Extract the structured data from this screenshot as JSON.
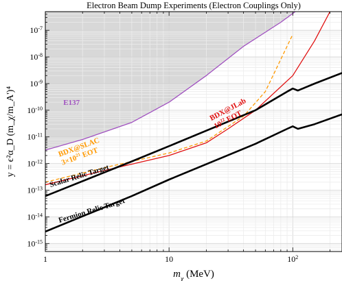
{
  "chart_data": {
    "type": "line",
    "title": "Electron Beam Dump Experiments (Electron Couplings Only)",
    "xlabel": {
      "prefix": "m",
      "sub": "χ",
      "suffix": " (MeV)"
    },
    "ylabel": "y = ϵ²α_D (m_χ/m_A')⁴",
    "x_scale": "log",
    "y_scale": "log",
    "xlim": [
      1,
      250
    ],
    "ylim": [
      5e-16,
      5e-07
    ],
    "grid": true,
    "x_ticks": [
      {
        "value": 1,
        "label": "1"
      },
      {
        "value": 10,
        "label": "10"
      },
      {
        "value": 100,
        "mant": "10",
        "exp": "2"
      }
    ],
    "y_ticks": [
      {
        "value": 1e-15,
        "mant": "10",
        "exp": "-15"
      },
      {
        "value": 1e-14,
        "mant": "10",
        "exp": "-14"
      },
      {
        "value": 1e-13,
        "mant": "10",
        "exp": "-13"
      },
      {
        "value": 1e-12,
        "mant": "10",
        "exp": "-12"
      },
      {
        "value": 1e-11,
        "mant": "10",
        "exp": "-11"
      },
      {
        "value": 1e-10,
        "mant": "10",
        "exp": "-10"
      },
      {
        "value": 1e-09,
        "mant": "10",
        "exp": "-9"
      },
      {
        "value": 1e-08,
        "mant": "10",
        "exp": "-8"
      },
      {
        "value": 1e-07,
        "mant": "10",
        "exp": "-7"
      }
    ],
    "series": [
      {
        "key": "e137",
        "name": "E137",
        "color": "#a050c0",
        "fill": "#d8d8d8",
        "points": [
          [
            1,
            3.2e-12
          ],
          [
            2,
            8e-12
          ],
          [
            5,
            3.5e-11
          ],
          [
            10,
            2e-10
          ],
          [
            20,
            2e-09
          ],
          [
            40,
            2.5e-08
          ],
          [
            80,
            2e-07
          ],
          [
            120,
            8e-07
          ]
        ]
      },
      {
        "key": "bdx_slac",
        "name": "BDX@SLAC 3×10²¹ EOT",
        "color": "#ff9900",
        "dashed": true,
        "points": [
          [
            1,
            2e-13
          ],
          [
            3,
            7e-13
          ],
          [
            10,
            2.5e-12
          ],
          [
            20,
            7e-12
          ],
          [
            40,
            6e-11
          ],
          [
            60,
            5e-10
          ],
          [
            100,
            7e-08
          ]
        ]
      },
      {
        "key": "bdx_jlab",
        "name": "BDX@JLab 10²² EOT",
        "color": "#e01010",
        "points": [
          [
            1,
            1.6e-13
          ],
          [
            3,
            5.5e-13
          ],
          [
            10,
            2e-12
          ],
          [
            20,
            6e-12
          ],
          [
            30,
            2e-11
          ],
          [
            50,
            1e-10
          ],
          [
            100,
            2e-09
          ],
          [
            150,
            4e-08
          ],
          [
            200,
            5e-07
          ]
        ]
      },
      {
        "key": "scalar",
        "name": "Scalar Relic Target",
        "color": "#000000",
        "points": [
          [
            1,
            6e-14
          ],
          [
            5,
            1.2e-12
          ],
          [
            10,
            4.5e-12
          ],
          [
            50,
            1e-10
          ],
          [
            90,
            5e-10
          ],
          [
            100,
            6.5e-10
          ],
          [
            110,
            5.5e-10
          ],
          [
            150,
            1e-09
          ],
          [
            250,
            2.5e-09
          ]
        ]
      },
      {
        "key": "fermion",
        "name": "Fermion Relic Target",
        "color": "#000000",
        "points": [
          [
            1,
            2.8e-15
          ],
          [
            5,
            6e-14
          ],
          [
            10,
            2.5e-13
          ],
          [
            50,
            5.5e-12
          ],
          [
            90,
            2e-11
          ],
          [
            100,
            2.5e-11
          ],
          [
            110,
            2e-11
          ],
          [
            150,
            3e-11
          ],
          [
            250,
            7e-11
          ]
        ]
      }
    ],
    "annotations": [
      {
        "key": "e137",
        "lines": [
          "E137"
        ],
        "color": "#a050c0",
        "at": [
          1.4,
          1.6e-10
        ],
        "rotate": 0
      },
      {
        "key": "slac",
        "lines": [
          "BDX@SLAC"
        ],
        "sup_line": {
          "pre": "3×10",
          "exp": "21",
          "post": " EOT"
        },
        "color": "#ff9900",
        "at": [
          1.3,
          1.8e-12
        ],
        "rotate": -20
      },
      {
        "key": "jlab",
        "lines": [
          "BDX@JLab"
        ],
        "sup_line": {
          "pre": "10",
          "exp": "22",
          "post": " EOT"
        },
        "color": "#e01010",
        "at": [
          22,
          4e-11
        ],
        "rotate": -28
      },
      {
        "key": "scalar",
        "lines": [
          "Scalar Relic Target"
        ],
        "color": "#000000",
        "at": [
          1.1,
          1.3e-13
        ],
        "rotate": -17
      },
      {
        "key": "fermion",
        "lines": [
          "Fermion Relic Target"
        ],
        "color": "#000000",
        "at": [
          1.3,
          6e-15
        ],
        "rotate": -17
      }
    ]
  }
}
